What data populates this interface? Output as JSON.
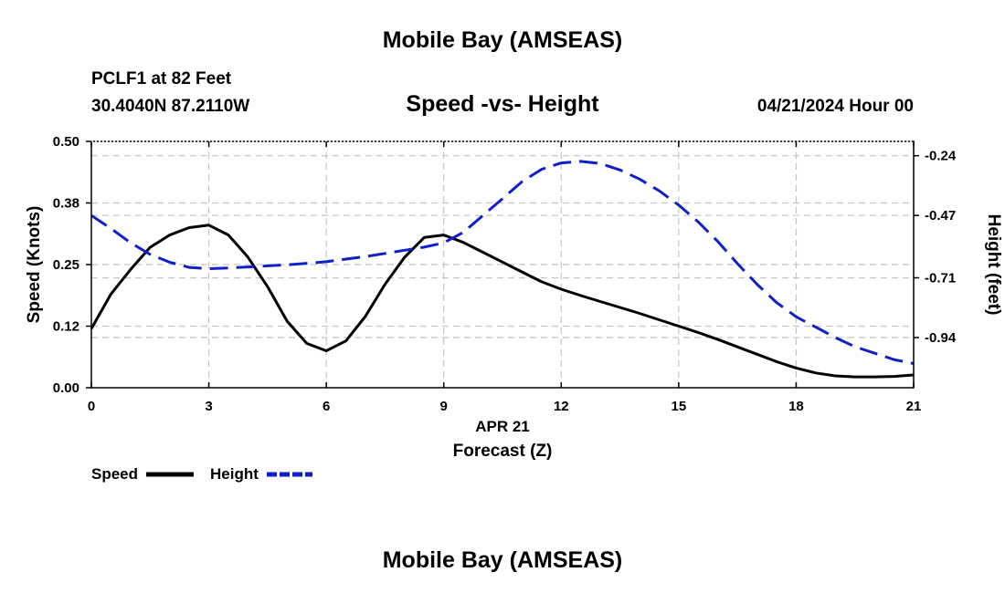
{
  "header": {
    "title": "Mobile Bay (AMSEAS)",
    "station": "PCLF1 at 82 Feet",
    "coordinates": "30.4040N  87.2110W",
    "subtitle": "Speed -vs- Height",
    "datetime": "04/21/2024 Hour 00"
  },
  "footer": {
    "title": "Mobile Bay (AMSEAS)"
  },
  "chart_data": {
    "type": "line",
    "title": "Speed -vs- Height",
    "xlabel": "Forecast (Z)",
    "date_label": "APR 21",
    "xlim": [
      0,
      21
    ],
    "x_ticks": [
      0,
      3,
      6,
      9,
      12,
      15,
      18,
      21
    ],
    "left_axis": {
      "label": "Speed (Knots)",
      "ylim": [
        0,
        0.5
      ],
      "ticks": [
        0.0,
        0.125,
        0.25,
        0.375,
        0.5
      ],
      "tick_labels": [
        "0.00",
        "0.12",
        "0.25",
        "0.38",
        "0.50"
      ]
    },
    "right_axis": {
      "label": "Height (feet)",
      "ylim": [
        -1.133,
        -0.185
      ],
      "ticks": [
        -0.94,
        -0.71,
        -0.47,
        -0.24
      ],
      "tick_labels": [
        "-0.94",
        "-0.71",
        "-0.47",
        "-0.24"
      ]
    },
    "grid": true,
    "series": [
      {
        "name": "Speed",
        "axis": "left",
        "color": "#000000",
        "style": "solid",
        "x": [
          0,
          0.5,
          1,
          1.5,
          2,
          2.5,
          3,
          3.5,
          4,
          4.5,
          5,
          5.5,
          6,
          6.5,
          7,
          7.5,
          8,
          8.5,
          9,
          9.5,
          10,
          10.5,
          11,
          11.5,
          12,
          12.5,
          13,
          13.5,
          14,
          14.5,
          15,
          15.5,
          16,
          16.5,
          17,
          17.5,
          18,
          18.5,
          19,
          19.5,
          20,
          20.5,
          21
        ],
        "values": [
          0.12,
          0.19,
          0.24,
          0.285,
          0.31,
          0.325,
          0.33,
          0.31,
          0.265,
          0.205,
          0.135,
          0.09,
          0.075,
          0.095,
          0.145,
          0.21,
          0.265,
          0.305,
          0.31,
          0.295,
          0.275,
          0.255,
          0.235,
          0.215,
          0.2,
          0.187,
          0.175,
          0.163,
          0.151,
          0.138,
          0.125,
          0.112,
          0.098,
          0.083,
          0.068,
          0.053,
          0.04,
          0.03,
          0.024,
          0.022,
          0.022,
          0.023,
          0.026
        ]
      },
      {
        "name": "Height",
        "axis": "right",
        "color": "#1020c8",
        "style": "dashed",
        "x": [
          0,
          0.5,
          1,
          1.5,
          2,
          2.5,
          3,
          3.5,
          4,
          4.5,
          5,
          5.5,
          6,
          6.5,
          7,
          7.5,
          8,
          8.5,
          9,
          9.5,
          10,
          10.5,
          11,
          11.5,
          12,
          12.5,
          13,
          13.5,
          14,
          14.5,
          15,
          15.5,
          16,
          16.5,
          17,
          17.5,
          18,
          18.5,
          19,
          19.5,
          20,
          20.5,
          21
        ],
        "values": [
          -0.47,
          -0.52,
          -0.575,
          -0.62,
          -0.65,
          -0.67,
          -0.675,
          -0.672,
          -0.668,
          -0.664,
          -0.66,
          -0.654,
          -0.648,
          -0.638,
          -0.628,
          -0.616,
          -0.604,
          -0.592,
          -0.575,
          -0.535,
          -0.47,
          -0.405,
          -0.34,
          -0.292,
          -0.268,
          -0.262,
          -0.27,
          -0.295,
          -0.33,
          -0.375,
          -0.43,
          -0.495,
          -0.57,
          -0.655,
          -0.735,
          -0.805,
          -0.86,
          -0.9,
          -0.94,
          -0.975,
          -1.0,
          -1.025,
          -1.04
        ]
      }
    ],
    "legend": {
      "placement": "bottom-left",
      "items": [
        "Speed",
        "Height"
      ]
    }
  }
}
